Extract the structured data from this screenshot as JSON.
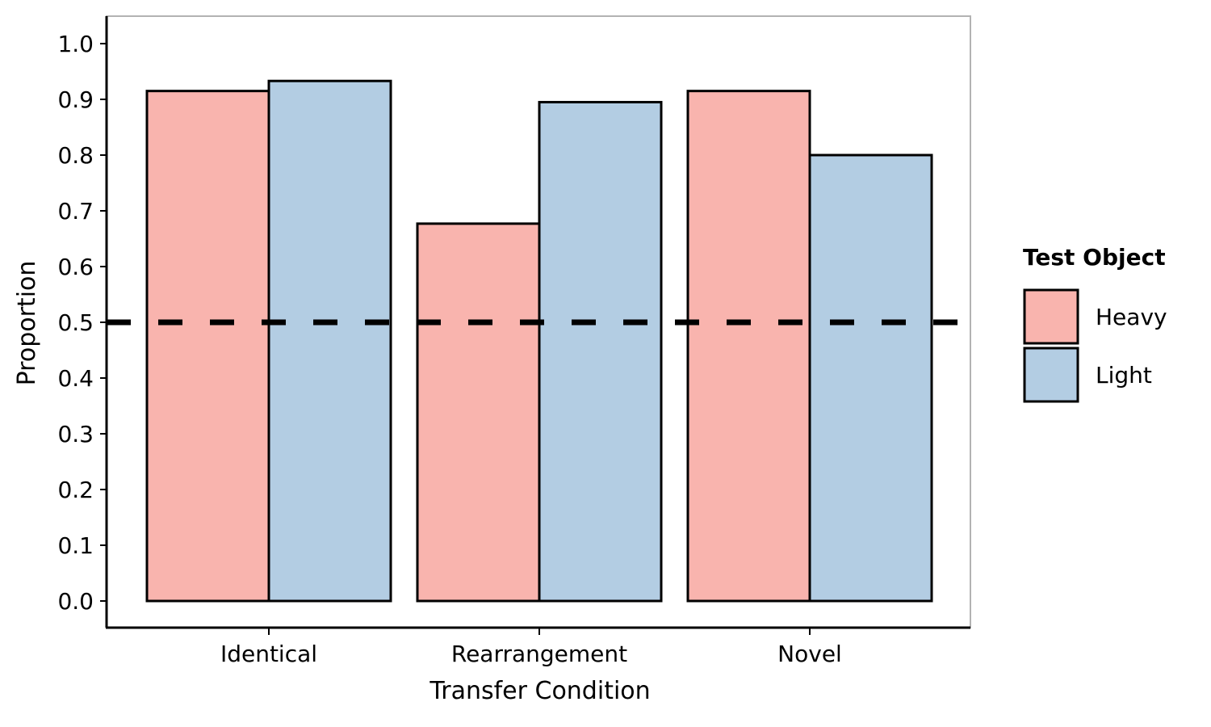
{
  "chart_data": {
    "type": "bar",
    "categories": [
      "Identical",
      "Rearrangement",
      "Novel"
    ],
    "series": [
      {
        "name": "Heavy",
        "values": [
          0.915,
          0.677,
          0.915
        ],
        "color": "#F9B4AE"
      },
      {
        "name": "Light",
        "values": [
          0.933,
          0.895,
          0.8
        ],
        "color": "#B3CDE3"
      }
    ],
    "xlabel": "Transfer Condition",
    "ylabel": "Proportion",
    "ylim": [
      0,
      1.0
    ],
    "yticks": [
      "0.0",
      "0.1",
      "0.2",
      "0.3",
      "0.4",
      "0.5",
      "0.6",
      "0.7",
      "0.8",
      "0.9",
      "1.0"
    ],
    "reference_line": {
      "y": 0.5,
      "style": "dashed"
    },
    "legend": {
      "title": "Test Object",
      "position": "right"
    },
    "grid": false
  }
}
